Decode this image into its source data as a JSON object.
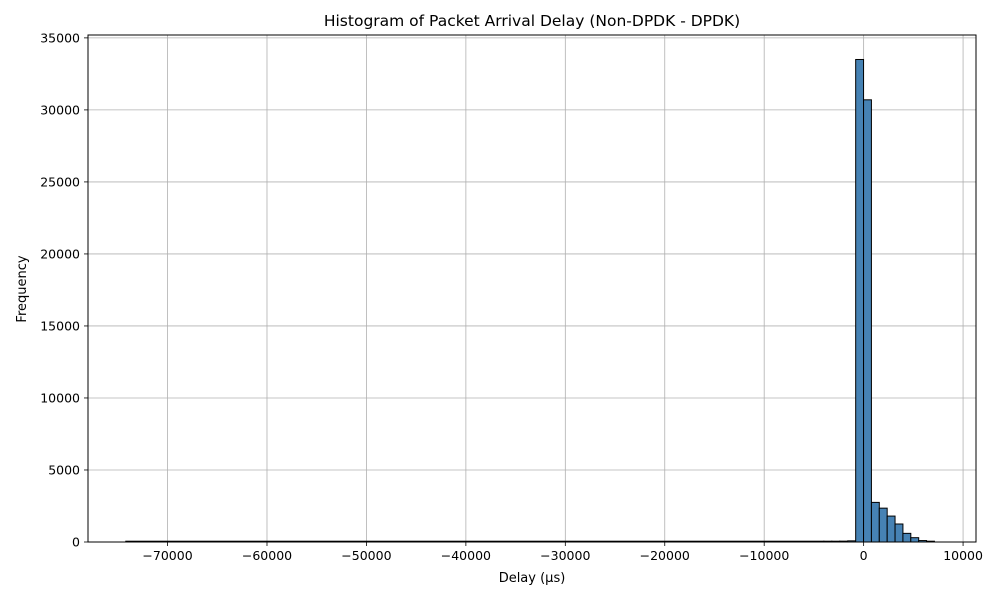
{
  "chart_data": {
    "type": "bar",
    "title": "Histogram of Packet Arrival Delay (Non-DPDK - DPDK)",
    "xlabel": "Delay (µs)",
    "ylabel": "Frequency",
    "xlim": [
      -78000,
      11300
    ],
    "ylim": [
      0,
      35200
    ],
    "grid": true,
    "bar_color": "#4682b4",
    "edge_color": "#000000",
    "grid_color": "#b0b0b0",
    "x_ticks": [
      -70000,
      -60000,
      -50000,
      -40000,
      -30000,
      -20000,
      -10000,
      0,
      10000
    ],
    "x_tick_labels": [
      "−70000",
      "−60000",
      "−50000",
      "−40000",
      "−30000",
      "−20000",
      "−10000",
      "0",
      "10000"
    ],
    "y_ticks": [
      0,
      5000,
      10000,
      15000,
      20000,
      25000,
      30000,
      35000
    ],
    "y_tick_labels": [
      "0",
      "5000",
      "10000",
      "15000",
      "20000",
      "25000",
      "30000",
      "35000"
    ],
    "bins": [
      {
        "x0": -74200,
        "x1": -4000,
        "value": 3
      },
      {
        "x0": -4000,
        "x1": -3200,
        "value": 40
      },
      {
        "x0": -3200,
        "x1": -2400,
        "value": 50
      },
      {
        "x0": -2400,
        "x1": -1600,
        "value": 60
      },
      {
        "x0": -1600,
        "x1": -800,
        "value": 80
      },
      {
        "x0": -800,
        "x1": -8,
        "value": 33500
      },
      {
        "x0": -8,
        "x1": 784,
        "value": 30700
      },
      {
        "x0": 784,
        "x1": 1576,
        "value": 2750
      },
      {
        "x0": 1576,
        "x1": 2368,
        "value": 2350
      },
      {
        "x0": 2368,
        "x1": 3160,
        "value": 1800
      },
      {
        "x0": 3160,
        "x1": 3952,
        "value": 1250
      },
      {
        "x0": 3952,
        "x1": 4744,
        "value": 600
      },
      {
        "x0": 4744,
        "x1": 5536,
        "value": 300
      },
      {
        "x0": 5536,
        "x1": 6328,
        "value": 100
      },
      {
        "x0": 6328,
        "x1": 7120,
        "value": 10
      }
    ]
  }
}
